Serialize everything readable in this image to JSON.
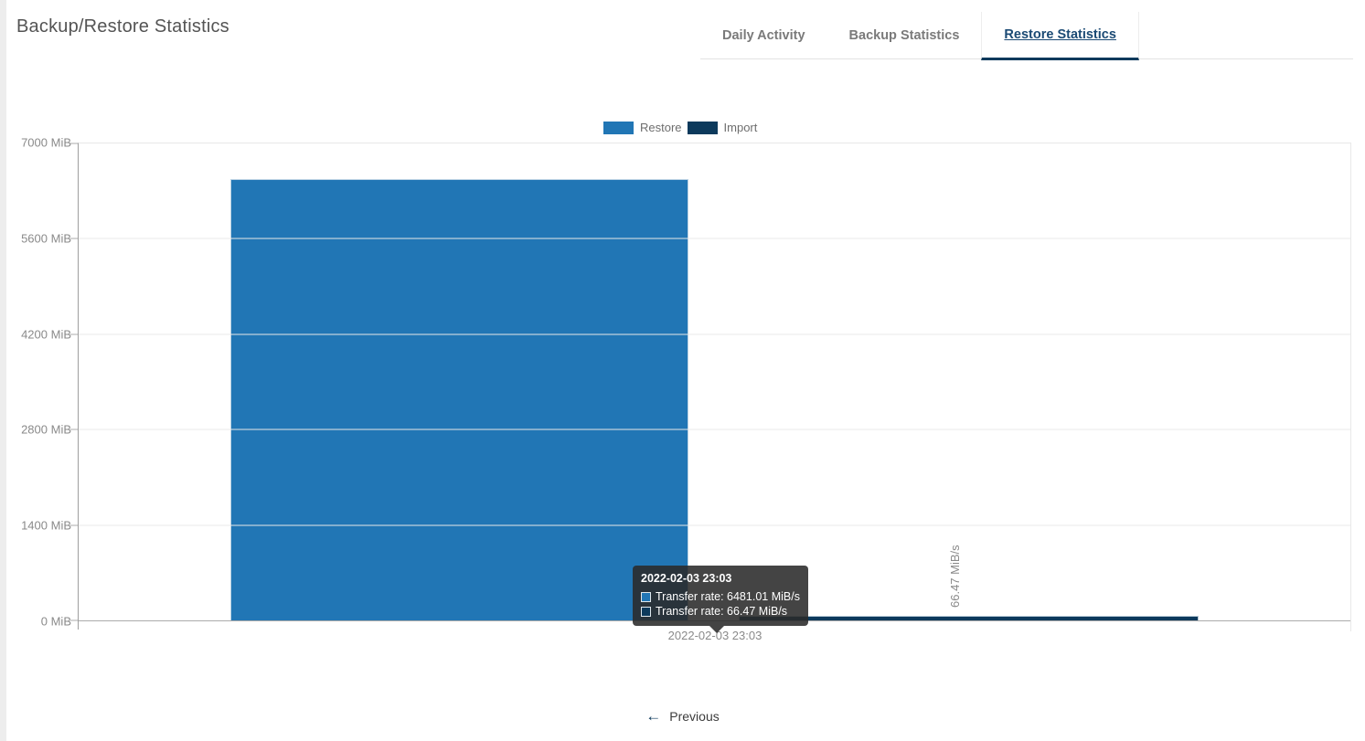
{
  "page": {
    "title": "Backup/Restore Statistics"
  },
  "tabs": [
    {
      "label": "Daily Activity",
      "active": false
    },
    {
      "label": "Backup Statistics",
      "active": false
    },
    {
      "label": "Restore Statistics",
      "active": true
    }
  ],
  "theme": {
    "accent_navy": "#0d3a5c",
    "active_tab_text": "#1b4a74",
    "restore_blue": "#2176b5"
  },
  "chart_data": {
    "type": "bar",
    "title": "",
    "xlabel": "",
    "ylabel": "",
    "categories": [
      "2022-02-03 23:03"
    ],
    "series": [
      {
        "name": "Restore",
        "color": "#2176b5",
        "values": [
          6481.01
        ],
        "unit": "MiB/s"
      },
      {
        "name": "Import",
        "color": "#0d3a5c",
        "values": [
          66.47
        ],
        "unit": "MiB/s"
      }
    ],
    "ylim": [
      0,
      7000
    ],
    "yticks": [
      "0 MiB",
      "1400 MiB",
      "2800 MiB",
      "4200 MiB",
      "5600 MiB",
      "7000 MiB"
    ],
    "value_labels": [
      "",
      "66.47 MiB/s"
    ],
    "grid": true,
    "legend_position": "top"
  },
  "tooltip": {
    "title": "2022-02-03 23:03",
    "rows": [
      {
        "series": "Restore",
        "text": "Transfer rate: 6481.01 MiB/s"
      },
      {
        "series": "Import",
        "text": "Transfer rate: 66.47 MiB/s"
      }
    ]
  },
  "pagination": {
    "previous_label": "Previous"
  }
}
